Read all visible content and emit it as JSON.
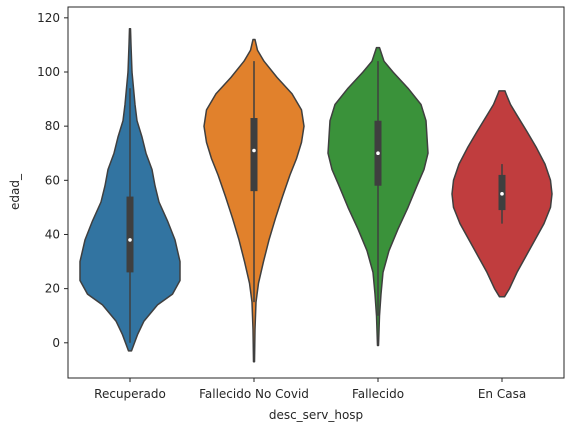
{
  "chart_data": {
    "type": "violin",
    "xlabel": "desc_serv_hosp",
    "ylabel": "edad_",
    "ylim": [
      -13,
      124
    ],
    "yticks": [
      0,
      20,
      40,
      60,
      80,
      100,
      120
    ],
    "grid": false,
    "categories": [
      "Recuperado",
      "Fallecido No Covid",
      "Fallecido",
      "En Casa"
    ],
    "colors": [
      "#3274a1",
      "#e1812c",
      "#3a923a",
      "#c03d3e"
    ],
    "series": [
      {
        "category": "Recuperado",
        "min": -3,
        "max": 116,
        "q1": 26,
        "median": 38,
        "q3": 54,
        "whisker_low": 0,
        "whisker_high": 94,
        "density": [
          [
            -3,
            0.03
          ],
          [
            3,
            0.15
          ],
          [
            8,
            0.28
          ],
          [
            14,
            0.55
          ],
          [
            18,
            0.85
          ],
          [
            23,
            1.0
          ],
          [
            30,
            1.0
          ],
          [
            38,
            0.9
          ],
          [
            45,
            0.75
          ],
          [
            52,
            0.58
          ],
          [
            58,
            0.5
          ],
          [
            64,
            0.44
          ],
          [
            70,
            0.32
          ],
          [
            76,
            0.24
          ],
          [
            82,
            0.14
          ],
          [
            88,
            0.1
          ],
          [
            94,
            0.07
          ],
          [
            100,
            0.04
          ],
          [
            110,
            0.02
          ],
          [
            116,
            0.01
          ]
        ]
      },
      {
        "category": "Fallecido No Covid",
        "min": -7,
        "max": 112,
        "q1": 56,
        "median": 71,
        "q3": 83,
        "whisker_low": 15,
        "whisker_high": 104,
        "density": [
          [
            -7,
            0.01
          ],
          [
            5,
            0.02
          ],
          [
            15,
            0.04
          ],
          [
            22,
            0.09
          ],
          [
            30,
            0.19
          ],
          [
            38,
            0.3
          ],
          [
            46,
            0.43
          ],
          [
            54,
            0.57
          ],
          [
            62,
            0.72
          ],
          [
            68,
            0.85
          ],
          [
            74,
            0.95
          ],
          [
            80,
            1.0
          ],
          [
            86,
            0.95
          ],
          [
            92,
            0.76
          ],
          [
            98,
            0.46
          ],
          [
            104,
            0.2
          ],
          [
            108,
            0.07
          ],
          [
            112,
            0.02
          ]
        ]
      },
      {
        "category": "Fallecido",
        "min": -1,
        "max": 109,
        "q1": 58,
        "median": 70,
        "q3": 82,
        "whisker_low": 10,
        "whisker_high": 104,
        "density": [
          [
            -1,
            0.01
          ],
          [
            10,
            0.03
          ],
          [
            18,
            0.06
          ],
          [
            26,
            0.1
          ],
          [
            34,
            0.22
          ],
          [
            42,
            0.4
          ],
          [
            50,
            0.6
          ],
          [
            58,
            0.78
          ],
          [
            64,
            0.92
          ],
          [
            70,
            1.0
          ],
          [
            76,
            0.98
          ],
          [
            82,
            0.96
          ],
          [
            88,
            0.86
          ],
          [
            94,
            0.6
          ],
          [
            100,
            0.3
          ],
          [
            104,
            0.12
          ],
          [
            109,
            0.03
          ]
        ]
      },
      {
        "category": "En Casa",
        "min": 17,
        "max": 93,
        "q1": 49,
        "median": 55,
        "q3": 62,
        "whisker_low": 44,
        "whisker_high": 66,
        "density": [
          [
            17,
            0.05
          ],
          [
            20,
            0.15
          ],
          [
            26,
            0.3
          ],
          [
            32,
            0.48
          ],
          [
            38,
            0.66
          ],
          [
            44,
            0.84
          ],
          [
            50,
            0.97
          ],
          [
            55,
            1.0
          ],
          [
            60,
            0.97
          ],
          [
            66,
            0.86
          ],
          [
            72,
            0.69
          ],
          [
            78,
            0.5
          ],
          [
            84,
            0.3
          ],
          [
            88,
            0.17
          ],
          [
            92,
            0.08
          ],
          [
            93,
            0.06
          ]
        ]
      }
    ]
  }
}
